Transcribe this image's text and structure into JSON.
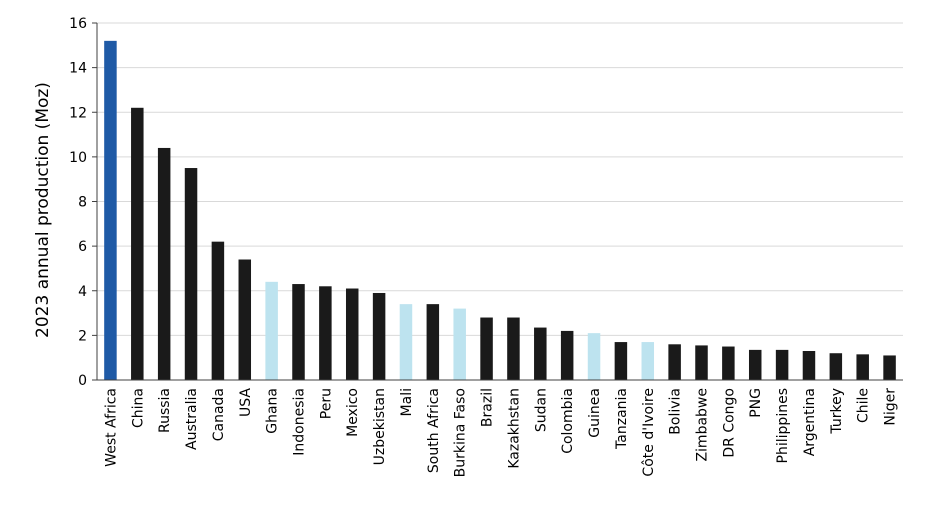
{
  "chart_data": {
    "type": "bar",
    "title": "",
    "xlabel": "",
    "ylabel": "2023 annual production (Moz)",
    "ylim": [
      0,
      16
    ],
    "yticks": [
      0,
      2,
      4,
      6,
      8,
      10,
      12,
      14,
      16
    ],
    "grid": true,
    "legend": "none",
    "colors": {
      "highlight": "#1f5aa6",
      "west_africa_country": "#bde3ef",
      "other": "#1a1a1a"
    },
    "categories": [
      "West Africa",
      "China",
      "Russia",
      "Australia",
      "Canada",
      "USA",
      "Ghana",
      "Indonesia",
      "Peru",
      "Mexico",
      "Uzbekistan",
      "Mali",
      "South Africa",
      "Burkina Faso",
      "Brazil",
      "Kazakhstan",
      "Sudan",
      "Colombia",
      "Guinea",
      "Tanzania",
      "Côte d'Ivoire",
      "Bolivia",
      "Zimbabwe",
      "DR Congo",
      "PNG",
      "Philippines",
      "Argentina",
      "Turkey",
      "Chile",
      "Niger"
    ],
    "values": [
      15.2,
      12.2,
      10.4,
      9.5,
      6.2,
      5.4,
      4.4,
      4.3,
      4.2,
      4.1,
      3.9,
      3.4,
      3.4,
      3.2,
      2.8,
      2.8,
      2.35,
      2.2,
      2.1,
      1.7,
      1.7,
      1.6,
      1.55,
      1.5,
      1.35,
      1.35,
      1.3,
      1.2,
      1.15,
      1.1
    ],
    "color_groups": [
      "highlight",
      "other",
      "other",
      "other",
      "other",
      "other",
      "west_africa_country",
      "other",
      "other",
      "other",
      "other",
      "west_africa_country",
      "other",
      "west_africa_country",
      "other",
      "other",
      "other",
      "other",
      "west_africa_country",
      "other",
      "west_africa_country",
      "other",
      "other",
      "other",
      "other",
      "other",
      "other",
      "other",
      "other",
      "other"
    ]
  }
}
